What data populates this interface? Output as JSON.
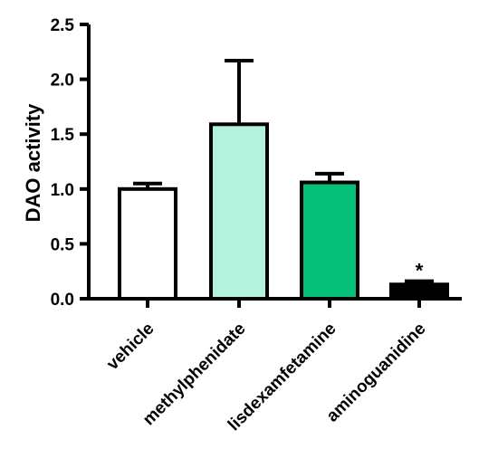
{
  "chart_data": {
    "type": "bar",
    "title": "",
    "xlabel": "",
    "ylabel": "DAO activity",
    "ylim": [
      0,
      2.5
    ],
    "yticks": [
      "0.0",
      "0.5",
      "1.0",
      "1.5",
      "2.0",
      "2.5"
    ],
    "categories": [
      "vehicle",
      "methylphenidate",
      "lisdexamfetamine",
      "aminoguanidine"
    ],
    "values": [
      1.0,
      1.59,
      1.06,
      0.13
    ],
    "errors": [
      0.05,
      0.58,
      0.08,
      0.03
    ],
    "bar_colors": [
      "#ffffff",
      "#b3f2dd",
      "#06bf79",
      "#000000"
    ],
    "annotations": [
      "",
      "",
      "",
      "*"
    ],
    "grid": false,
    "legend": "none"
  }
}
